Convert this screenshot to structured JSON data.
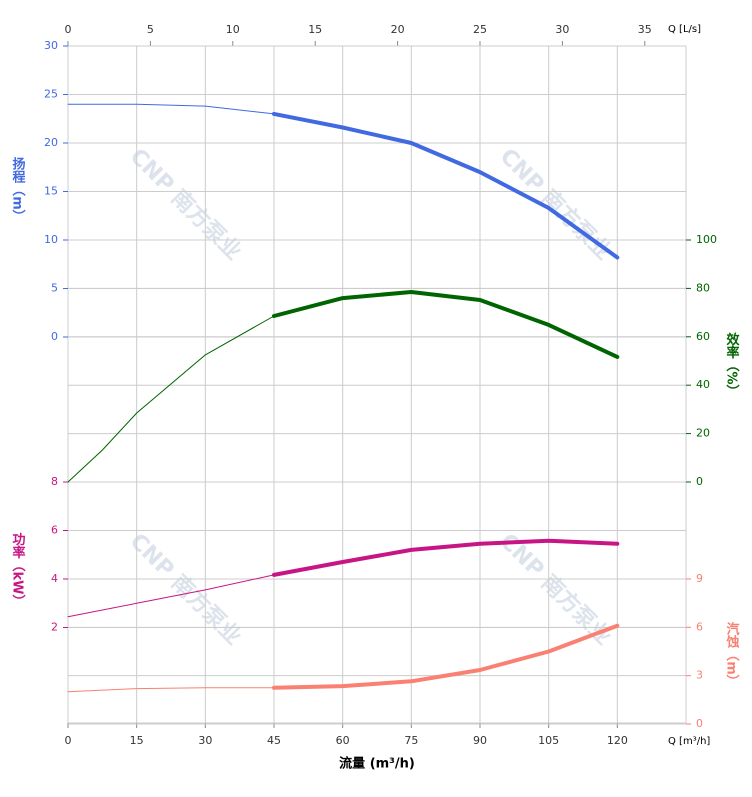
{
  "chart_data": {
    "type": "line",
    "xlabel": "流量 (m³/h)",
    "xunit": "Q [m³/h]",
    "xlim": [
      0,
      135
    ],
    "xticks": [
      0,
      15,
      30,
      45,
      60,
      75,
      90,
      105,
      120
    ],
    "top_axis": {
      "unit": "Q [L/s]",
      "xlim": [
        0,
        37.5
      ],
      "xticks": [
        0,
        5,
        10,
        15,
        20,
        25,
        30,
        35
      ]
    },
    "watermark": "CNP 南方泵业",
    "grid": true,
    "axes": [
      {
        "id": "head",
        "label": "扬程（m）",
        "side": "left",
        "color": "#4169e1",
        "ylim": [
          0,
          30
        ],
        "yticks": [
          0,
          5,
          10,
          15,
          20,
          25,
          30
        ]
      },
      {
        "id": "eff",
        "label": "效率（%）",
        "side": "right",
        "color": "#006400",
        "ylim": [
          0,
          100
        ],
        "yticks": [
          0,
          20,
          40,
          60,
          80,
          100
        ]
      },
      {
        "id": "power",
        "label": "功率（kW）",
        "side": "left",
        "color": "#c71585",
        "ylim": [
          0,
          8
        ],
        "yticks": [
          2,
          4,
          6,
          8
        ]
      },
      {
        "id": "npsh",
        "label": "汽蚀（m）",
        "side": "right",
        "color": "#fa8072",
        "ylim": [
          0,
          9
        ],
        "yticks": [
          0,
          3,
          6,
          9
        ]
      }
    ],
    "series": [
      {
        "axis": "head",
        "color": "#4169e1",
        "segments": [
          {
            "line_width": 1,
            "x": [
              0,
              15,
              30,
              45
            ],
            "values": [
              24.0,
              24.0,
              23.8,
              23.0
            ]
          },
          {
            "line_width": 4,
            "x": [
              45,
              60,
              75,
              90,
              105,
              120
            ],
            "values": [
              23.0,
              21.6,
              20.0,
              17.0,
              13.3,
              8.2
            ]
          }
        ]
      },
      {
        "axis": "eff",
        "color": "#006400",
        "segments": [
          {
            "line_width": 1,
            "x": [
              0,
              7.5,
              15,
              30,
              45
            ],
            "values": [
              0,
              13.2,
              28.5,
              52.5,
              68.6
            ]
          },
          {
            "line_width": 4,
            "x": [
              45,
              60,
              75,
              90,
              105,
              120
            ],
            "values": [
              68.6,
              76.0,
              78.5,
              75.2,
              64.9,
              51.7
            ]
          }
        ]
      },
      {
        "axis": "power",
        "color": "#c71585",
        "segments": [
          {
            "line_width": 1,
            "x": [
              0,
              15,
              30,
              45
            ],
            "values": [
              2.44,
              3.0,
              3.55,
              4.17
            ]
          },
          {
            "line_width": 4,
            "x": [
              45,
              60,
              75,
              90,
              105,
              120
            ],
            "values": [
              4.17,
              4.7,
              5.2,
              5.45,
              5.58,
              5.45
            ]
          }
        ]
      },
      {
        "axis": "npsh",
        "color": "#fa8072",
        "segments": [
          {
            "line_width": 1,
            "x": [
              0,
              15,
              30,
              45
            ],
            "values": [
              2.0,
              2.2,
              2.25,
              2.25
            ]
          },
          {
            "line_width": 4,
            "x": [
              45,
              60,
              75,
              90,
              105,
              120
            ],
            "values": [
              2.25,
              2.35,
              2.65,
              3.35,
              4.5,
              6.1
            ]
          }
        ]
      }
    ]
  }
}
